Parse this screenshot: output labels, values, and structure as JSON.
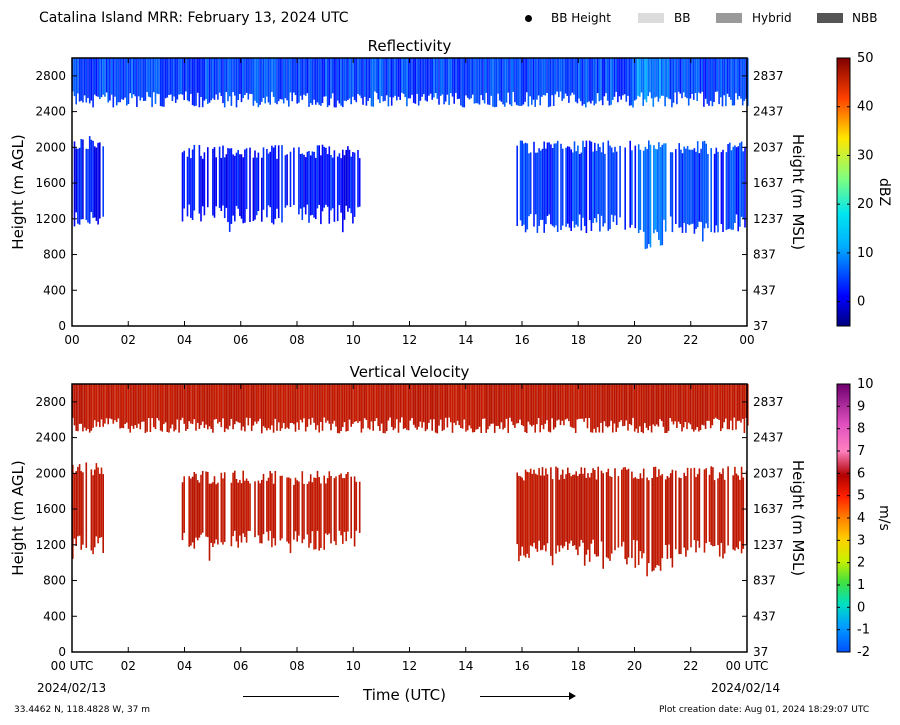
{
  "header": {
    "title": "Catalina Island MRR:  February 13, 2024 UTC",
    "legend": [
      {
        "label": "BB Height",
        "kind": "dot",
        "color": "#000000"
      },
      {
        "label": "BB",
        "kind": "box",
        "color": "#dcdcdc"
      },
      {
        "label": "Hybrid",
        "kind": "box",
        "color": "#9a9a9a"
      },
      {
        "label": "NBB",
        "kind": "box",
        "color": "#555555"
      }
    ]
  },
  "footer": {
    "xlabel": "Time (UTC)",
    "date_start": "2024/02/13",
    "date_end": "2024/02/14",
    "location": "33.4462 N, 118.4828 W, 37 m",
    "creation": "Plot creation date: Aug 01, 2024 18:29:07 UTC"
  },
  "chart_data": [
    {
      "type": "heatmap",
      "title": "Reflectivity",
      "ylabel": "Height (m AGL)",
      "ylabel_right": "Height (m MSL)",
      "xlim": [
        0,
        24
      ],
      "ylim": [
        0,
        3000
      ],
      "x_ticks": [
        "00",
        "02",
        "04",
        "06",
        "08",
        "10",
        "12",
        "14",
        "16",
        "18",
        "20",
        "22",
        "00"
      ],
      "y_ticks": [
        0,
        400,
        800,
        1200,
        1600,
        2000,
        2400,
        2800
      ],
      "y_ticks_right": [
        37,
        437,
        837,
        1237,
        1637,
        2037,
        2437,
        2837
      ],
      "colorbar": {
        "label": "dBZ",
        "range": [
          -5,
          50
        ],
        "ticks": [
          0,
          10,
          20,
          30,
          40,
          50
        ],
        "colormap": "jet"
      },
      "layers": [
        {
          "band": "upper",
          "t_start": 0,
          "t_end": 24,
          "bottom": 2500,
          "top": 3000,
          "typical_value": 5
        },
        {
          "band": "lower",
          "t_start": 0,
          "t_end": 1.1,
          "bottom": 1200,
          "top": 2050,
          "typical_value": 2
        },
        {
          "band": "lower",
          "t_start": 3.9,
          "t_end": 10.2,
          "bottom": 1250,
          "top": 1950,
          "typical_value": 2
        },
        {
          "band": "lower",
          "t_start": 15.8,
          "t_end": 24,
          "bottom": 1150,
          "top": 2000,
          "typical_value": 4
        }
      ]
    },
    {
      "type": "heatmap",
      "title": "Vertical Velocity",
      "ylabel": "Height (m AGL)",
      "ylabel_right": "Height (m MSL)",
      "xlim": [
        0,
        24
      ],
      "ylim": [
        0,
        3000
      ],
      "x_ticks": [
        "00 UTC",
        "02",
        "04",
        "06",
        "08",
        "10",
        "12",
        "14",
        "16",
        "18",
        "20",
        "22",
        "00 UTC"
      ],
      "y_ticks": [
        0,
        400,
        800,
        1200,
        1600,
        2000,
        2400,
        2800
      ],
      "y_ticks_right": [
        37,
        437,
        837,
        1237,
        1637,
        2037,
        2437,
        2837
      ],
      "colorbar": {
        "label": "m/s",
        "range": [
          -2,
          10
        ],
        "ticks": [
          -2,
          -1,
          0,
          1,
          2,
          3,
          4,
          5,
          6,
          7,
          8,
          9,
          10
        ]
      },
      "layers": [
        {
          "band": "upper",
          "t_start": 0,
          "t_end": 24,
          "bottom": 2500,
          "top": 3000,
          "typical_value": 6
        },
        {
          "band": "lower",
          "t_start": 0,
          "t_end": 1.1,
          "bottom": 1200,
          "top": 2050,
          "typical_value": 6
        },
        {
          "band": "lower",
          "t_start": 3.9,
          "t_end": 10.2,
          "bottom": 1250,
          "top": 1950,
          "typical_value": 6
        },
        {
          "band": "lower",
          "t_start": 15.8,
          "t_end": 24,
          "bottom": 1150,
          "top": 2000,
          "typical_value": 6
        }
      ]
    }
  ]
}
